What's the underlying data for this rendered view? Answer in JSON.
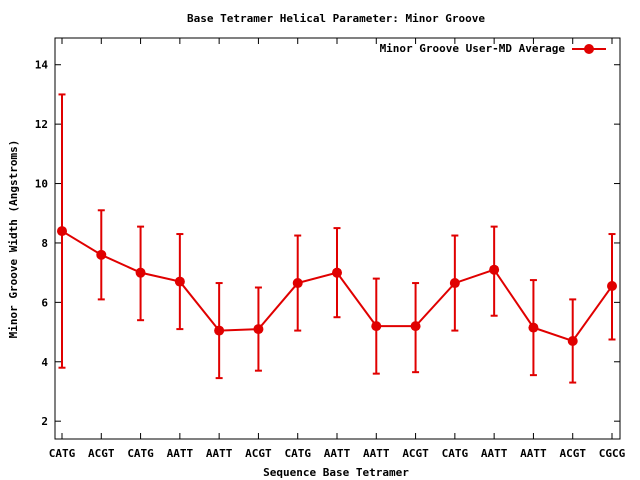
{
  "chart_data": {
    "type": "line",
    "title": "Base Tetramer Helical Parameter: Minor Groove",
    "xlabel": "Sequence Base Tetramer",
    "ylabel": "Minor Groove Width (Angstroms)",
    "ylim": [
      1.4,
      14.9
    ],
    "yticks": [
      2,
      4,
      6,
      8,
      10,
      12,
      14
    ],
    "grid": false,
    "legend_position": "top-right",
    "categories": [
      "CATG",
      "ACGT",
      "CATG",
      "AATT",
      "AATT",
      "ACGT",
      "CATG",
      "AATT",
      "AATT",
      "ACGT",
      "CATG",
      "AATT",
      "AATT",
      "ACGT",
      "CGCG"
    ],
    "series": [
      {
        "name": "Minor Groove User-MD Average",
        "color": "#e00000",
        "values": [
          8.4,
          7.6,
          7.0,
          6.7,
          5.05,
          5.1,
          6.65,
          7.0,
          5.2,
          5.2,
          6.65,
          7.1,
          5.15,
          4.7,
          6.55
        ],
        "error_low": [
          3.8,
          6.1,
          5.4,
          5.1,
          3.45,
          3.7,
          5.05,
          5.5,
          3.6,
          3.65,
          5.05,
          5.55,
          3.55,
          3.3,
          4.75
        ],
        "error_high": [
          13.0,
          9.1,
          8.55,
          8.3,
          6.65,
          6.5,
          8.25,
          8.5,
          6.8,
          6.65,
          8.25,
          8.55,
          6.75,
          6.1,
          8.3
        ]
      }
    ]
  }
}
